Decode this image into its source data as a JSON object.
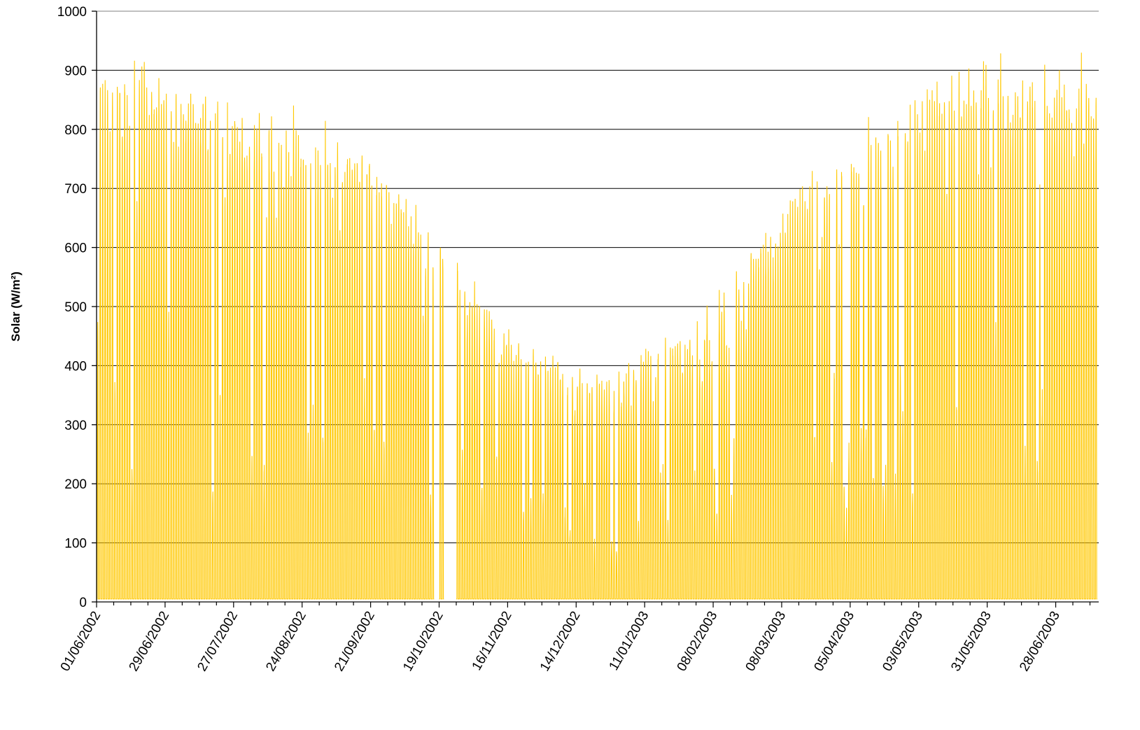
{
  "chart_data": {
    "type": "line",
    "title": "",
    "xlabel": "",
    "ylabel": "Solar (W/m²)",
    "ylim": [
      0,
      1000
    ],
    "y_ticks": [
      0,
      100,
      200,
      300,
      400,
      500,
      600,
      700,
      800,
      900,
      1000
    ],
    "x_range": [
      "01/06/2002",
      "15/07/2003"
    ],
    "x_tick_labels": [
      "01/06/2002",
      "29/06/2002",
      "27/07/2002",
      "24/08/2002",
      "21/09/2002",
      "19/10/2002",
      "16/11/2002",
      "14/12/2002",
      "11/01/2003",
      "08/02/2003",
      "08/03/2003",
      "05/04/2003",
      "03/05/2003",
      "31/05/2003",
      "28/06/2003"
    ],
    "grid": "horizontal",
    "colors": {
      "series": "#FFC800",
      "grid": "#000000"
    },
    "series": [
      {
        "name": "",
        "sampling": "hourly",
        "daily_peak": {
          "dates": [
            "01/06/2002",
            "15/06/2002",
            "29/06/2002",
            "13/07/2002",
            "27/07/2002",
            "10/08/2002",
            "24/08/2002",
            "07/09/2002",
            "21/09/2002",
            "05/10/2002",
            "19/10/2002",
            "02/11/2002",
            "16/11/2002",
            "30/11/2002",
            "14/12/2002",
            "28/12/2002",
            "11/01/2003",
            "25/01/2003",
            "08/02/2003",
            "22/02/2003",
            "08/03/2003",
            "22/03/2003",
            "05/04/2003",
            "19/04/2003",
            "03/05/2003",
            "17/05/2003",
            "31/05/2003",
            "14/06/2003",
            "28/06/2003",
            "12/07/2003"
          ],
          "values": [
            930,
            945,
            920,
            910,
            890,
            860,
            845,
            820,
            780,
            700,
            640,
            560,
            490,
            440,
            420,
            400,
            450,
            470,
            540,
            610,
            700,
            750,
            810,
            860,
            900,
            940,
            945,
            940,
            940,
            945
          ]
        },
        "missing_periods": [
          [
            "17/10/2002",
            "18/10/2002"
          ],
          [
            "21/10/2002",
            "25/10/2002"
          ]
        ]
      }
    ]
  }
}
